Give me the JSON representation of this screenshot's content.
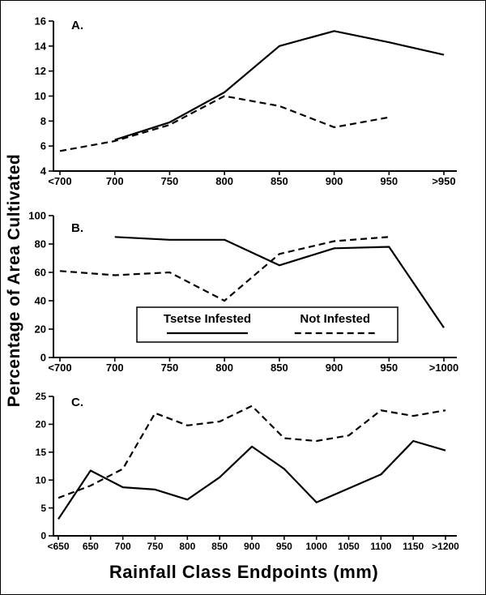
{
  "figure": {
    "ylabel": "Percentage of Area Cultivated",
    "xlabel": "Rainfall Class Endpoints (mm)"
  },
  "colors": {
    "line": "#000000",
    "background": "#ffffff"
  },
  "chart_data": [
    {
      "panel": "A.",
      "type": "line",
      "categories": [
        "<700",
        "700",
        "750",
        "800",
        "850",
        "900",
        "950",
        ">950"
      ],
      "ylim": [
        4,
        16
      ],
      "yticks": [
        4,
        6,
        8,
        10,
        12,
        14,
        16
      ],
      "grid": false,
      "series": [
        {
          "name": "Tsetse Infested",
          "style": "solid",
          "values": [
            null,
            6.5,
            7.9,
            10.3,
            14.0,
            15.2,
            14.3,
            13.3
          ]
        },
        {
          "name": "Not Infested",
          "style": "dashed",
          "values": [
            5.6,
            6.4,
            7.7,
            10.0,
            9.2,
            7.5,
            8.3,
            null
          ]
        }
      ]
    },
    {
      "panel": "B.",
      "type": "line",
      "categories": [
        "<700",
        "700",
        "750",
        "800",
        "850",
        "900",
        "950",
        ">1000"
      ],
      "ylim": [
        0,
        100
      ],
      "yticks": [
        0,
        20,
        40,
        60,
        80,
        100
      ],
      "grid": false,
      "series": [
        {
          "name": "Tsetse Infested",
          "style": "solid",
          "values": [
            null,
            85,
            83,
            83,
            65,
            77,
            78,
            21
          ]
        },
        {
          "name": "Not Infested",
          "style": "dashed",
          "values": [
            61,
            58,
            60,
            40,
            73,
            82,
            85,
            null
          ]
        }
      ],
      "legend": {
        "position": "inside-bottom-center",
        "items": [
          {
            "label": "Tsetse Infested",
            "style": "solid"
          },
          {
            "label": "Not Infested",
            "style": "dashed"
          }
        ]
      }
    },
    {
      "panel": "C.",
      "type": "line",
      "categories": [
        "<650",
        "650",
        "700",
        "750",
        "800",
        "850",
        "900",
        "950",
        "1000",
        "1050",
        "1100",
        "1150",
        ">1200"
      ],
      "ylim": [
        0,
        25
      ],
      "yticks": [
        0,
        5,
        10,
        15,
        20,
        25
      ],
      "grid": false,
      "series": [
        {
          "name": "Tsetse Infested",
          "style": "solid",
          "values": [
            3.0,
            11.7,
            8.7,
            8.3,
            6.5,
            10.5,
            16.0,
            12.0,
            6.0,
            8.5,
            11.0,
            17.0,
            15.3
          ]
        },
        {
          "name": "Not Infested",
          "style": "dashed",
          "values": [
            6.8,
            9.0,
            12.0,
            22.0,
            19.8,
            20.5,
            23.3,
            17.5,
            17.0,
            18.0,
            22.5,
            21.5,
            22.5
          ]
        }
      ]
    }
  ]
}
